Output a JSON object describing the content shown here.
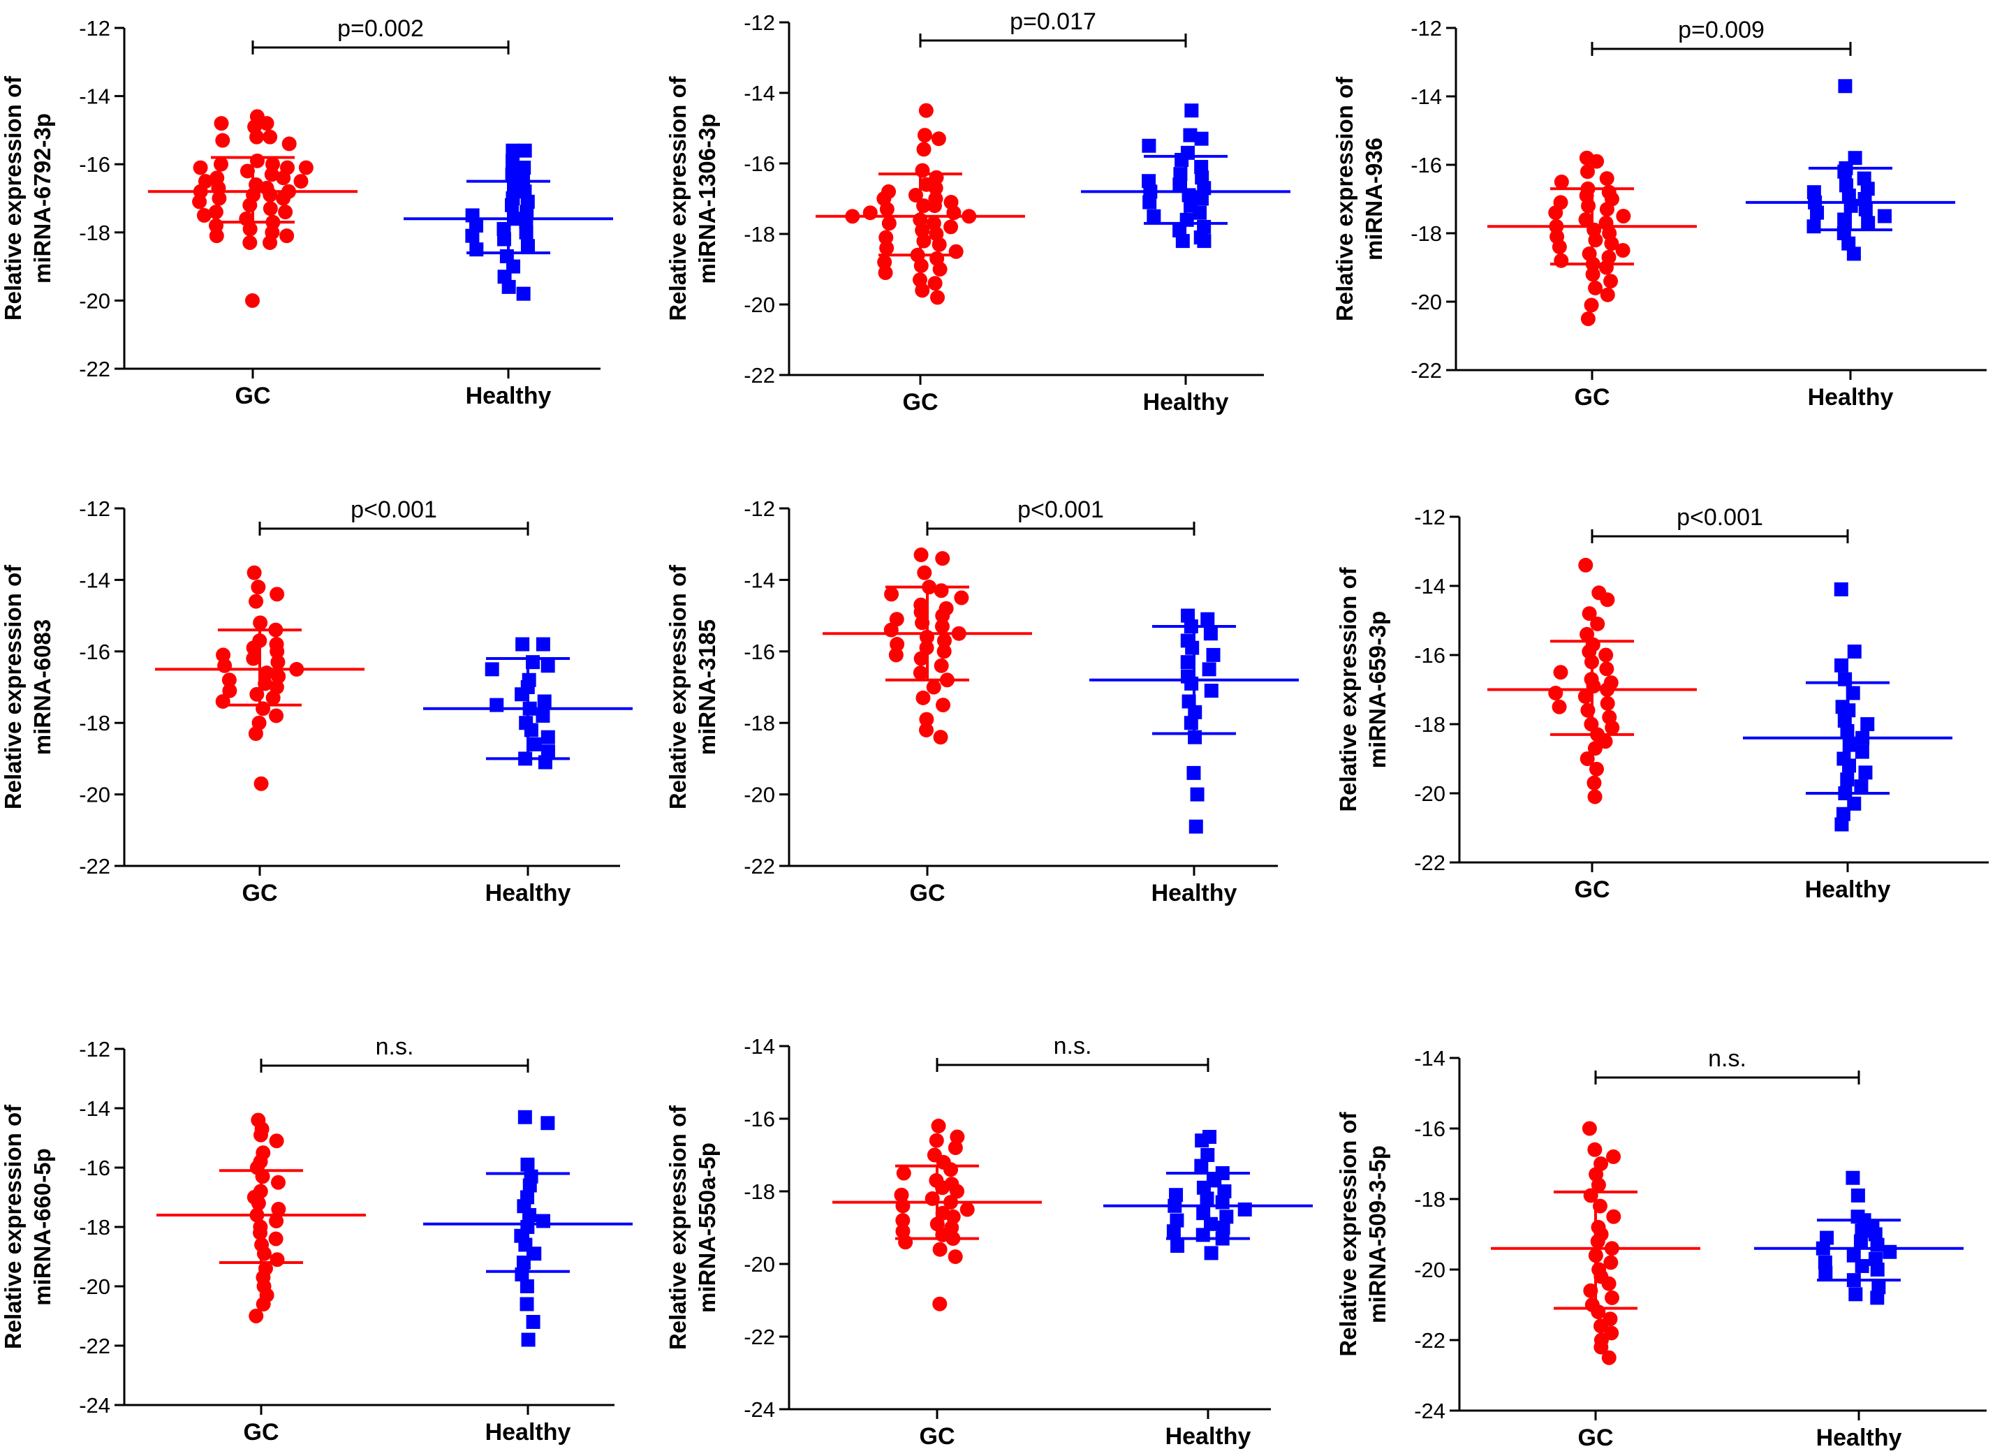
{
  "chart_data": [
    {
      "type": "scatter",
      "ylabel": [
        "Relative expression of",
        "miRNA-6792-3p"
      ],
      "categories": [
        "GC",
        "Healthy"
      ],
      "ylim": [
        -22,
        -12
      ],
      "yticks": [
        -12,
        -14,
        -16,
        -18,
        -20,
        -22
      ],
      "p_value": "p=0.002",
      "series": [
        {
          "name": "GC",
          "color": "#ff0000",
          "marker": "circle",
          "mean": -16.8,
          "sd_upper": -15.8,
          "sd_lower": -17.7,
          "values": [
            -14.6,
            -14.8,
            -14.8,
            -14.9,
            -15.2,
            -15.2,
            -15.3,
            -15.4,
            -15.9,
            -16.0,
            -16.0,
            -16.1,
            -16.1,
            -16.1,
            -16.2,
            -16.3,
            -16.4,
            -16.4,
            -16.5,
            -16.5,
            -16.6,
            -16.7,
            -16.7,
            -16.8,
            -16.8,
            -16.9,
            -16.9,
            -17.0,
            -17.0,
            -17.1,
            -17.2,
            -17.3,
            -17.4,
            -17.4,
            -17.5,
            -17.6,
            -17.7,
            -17.8,
            -17.9,
            -18.0,
            -18.1,
            -18.1,
            -18.3,
            -18.3,
            -20.0
          ]
        },
        {
          "name": "Healthy",
          "color": "#0000ff",
          "marker": "square",
          "mean": -17.6,
          "sd_upper": -16.5,
          "sd_lower": -18.6,
          "values": [
            -15.6,
            -15.6,
            -15.9,
            -16.1,
            -16.3,
            -16.5,
            -16.6,
            -16.8,
            -17.0,
            -17.1,
            -17.2,
            -17.4,
            -17.5,
            -17.6,
            -17.7,
            -17.8,
            -17.9,
            -18.0,
            -18.1,
            -18.2,
            -18.4,
            -18.5,
            -18.7,
            -19.0,
            -19.3,
            -19.6,
            -19.8
          ]
        }
      ]
    },
    {
      "type": "scatter",
      "ylabel": [
        "Relative expression of",
        "miRNA-1306-3p"
      ],
      "categories": [
        "GC",
        "Healthy"
      ],
      "ylim": [
        -22,
        -12
      ],
      "yticks": [
        -12,
        -14,
        -16,
        -18,
        -20,
        -22
      ],
      "p_value": "p=0.017",
      "series": [
        {
          "name": "GC",
          "color": "#ff0000",
          "marker": "circle",
          "mean": -17.5,
          "sd_upper": -16.3,
          "sd_lower": -18.6,
          "values": [
            -14.5,
            -15.2,
            -15.3,
            -15.6,
            -16.2,
            -16.4,
            -16.6,
            -16.7,
            -16.8,
            -16.9,
            -17.0,
            -17.0,
            -17.1,
            -17.2,
            -17.2,
            -17.3,
            -17.4,
            -17.4,
            -17.5,
            -17.5,
            -17.6,
            -17.7,
            -17.7,
            -17.8,
            -17.9,
            -18.0,
            -18.1,
            -18.2,
            -18.3,
            -18.4,
            -18.5,
            -18.6,
            -18.7,
            -18.8,
            -18.9,
            -19.0,
            -19.1,
            -19.3,
            -19.4,
            -19.6,
            -19.8
          ]
        },
        {
          "name": "Healthy",
          "color": "#0000ff",
          "marker": "square",
          "mean": -16.8,
          "sd_upper": -15.8,
          "sd_lower": -17.7,
          "values": [
            -14.5,
            -15.2,
            -15.3,
            -15.5,
            -15.7,
            -15.9,
            -16.1,
            -16.3,
            -16.4,
            -16.5,
            -16.6,
            -16.7,
            -16.8,
            -16.9,
            -17.0,
            -17.1,
            -17.2,
            -17.4,
            -17.5,
            -17.6,
            -17.8,
            -17.9,
            -18.1,
            -18.2,
            -18.2
          ]
        }
      ]
    },
    {
      "type": "scatter",
      "ylabel": [
        "Relative expression of",
        "miRNA-936"
      ],
      "categories": [
        "GC",
        "Healthy"
      ],
      "ylim": [
        -22,
        -12
      ],
      "yticks": [
        -12,
        -14,
        -16,
        -18,
        -20,
        -22
      ],
      "p_value": "p=0.009",
      "series": [
        {
          "name": "GC",
          "color": "#ff0000",
          "marker": "circle",
          "mean": -17.8,
          "sd_upper": -16.7,
          "sd_lower": -18.9,
          "values": [
            -15.8,
            -15.9,
            -16.2,
            -16.4,
            -16.5,
            -16.7,
            -16.8,
            -16.9,
            -17.0,
            -17.1,
            -17.2,
            -17.3,
            -17.4,
            -17.5,
            -17.6,
            -17.7,
            -17.8,
            -17.9,
            -18.0,
            -18.1,
            -18.2,
            -18.3,
            -18.4,
            -18.5,
            -18.6,
            -18.7,
            -18.8,
            -18.9,
            -19.0,
            -19.2,
            -19.4,
            -19.6,
            -19.8,
            -20.1,
            -20.5
          ]
        },
        {
          "name": "Healthy",
          "color": "#0000ff",
          "marker": "square",
          "mean": -17.1,
          "sd_upper": -16.1,
          "sd_lower": -17.9,
          "values": [
            -13.7,
            -15.8,
            -16.1,
            -16.2,
            -16.4,
            -16.6,
            -16.7,
            -16.8,
            -16.9,
            -17.0,
            -17.1,
            -17.2,
            -17.3,
            -17.4,
            -17.5,
            -17.6,
            -17.7,
            -17.8,
            -18.0,
            -18.3,
            -18.6
          ]
        }
      ]
    },
    {
      "type": "scatter",
      "ylabel": [
        "Relative expression of",
        "miRNA-6083"
      ],
      "categories": [
        "GC",
        "Healthy"
      ],
      "ylim": [
        -22,
        -12
      ],
      "yticks": [
        -12,
        -14,
        -16,
        -18,
        -20,
        -22
      ],
      "p_value": "p<0.001",
      "series": [
        {
          "name": "GC",
          "color": "#ff0000",
          "marker": "circle",
          "mean": -16.5,
          "sd_upper": -15.4,
          "sd_lower": -17.5,
          "values": [
            -13.8,
            -14.2,
            -14.4,
            -14.6,
            -15.2,
            -15.4,
            -15.7,
            -15.8,
            -15.9,
            -16.0,
            -16.1,
            -16.2,
            -16.3,
            -16.4,
            -16.5,
            -16.6,
            -16.7,
            -16.8,
            -16.9,
            -17.0,
            -17.1,
            -17.2,
            -17.3,
            -17.4,
            -17.6,
            -17.8,
            -18.0,
            -18.3,
            -19.7
          ]
        },
        {
          "name": "Healthy",
          "color": "#0000ff",
          "marker": "square",
          "mean": -17.6,
          "sd_upper": -16.2,
          "sd_lower": -19.0,
          "values": [
            -15.8,
            -15.8,
            -16.3,
            -16.4,
            -16.5,
            -16.8,
            -17.0,
            -17.2,
            -17.4,
            -17.5,
            -17.6,
            -17.8,
            -18.0,
            -18.2,
            -18.4,
            -18.6,
            -18.8,
            -19.0,
            -19.1
          ]
        }
      ]
    },
    {
      "type": "scatter",
      "ylabel": [
        "Relative expression of",
        "miRNA-3185"
      ],
      "categories": [
        "GC",
        "Healthy"
      ],
      "ylim": [
        -22,
        -12
      ],
      "yticks": [
        -12,
        -14,
        -16,
        -18,
        -20,
        -22
      ],
      "p_value": "p<0.001",
      "series": [
        {
          "name": "GC",
          "color": "#ff0000",
          "marker": "circle",
          "mean": -15.5,
          "sd_upper": -14.2,
          "sd_lower": -16.8,
          "values": [
            -13.3,
            -13.4,
            -13.8,
            -14.2,
            -14.3,
            -14.4,
            -14.5,
            -14.7,
            -14.8,
            -14.9,
            -15.0,
            -15.1,
            -15.2,
            -15.3,
            -15.4,
            -15.5,
            -15.6,
            -15.7,
            -15.8,
            -15.9,
            -16.0,
            -16.1,
            -16.2,
            -16.4,
            -16.6,
            -16.8,
            -17.0,
            -17.3,
            -17.5,
            -17.9,
            -18.2,
            -18.4
          ]
        },
        {
          "name": "Healthy",
          "color": "#0000ff",
          "marker": "square",
          "mean": -16.8,
          "sd_upper": -15.3,
          "sd_lower": -18.3,
          "values": [
            -15.0,
            -15.1,
            -15.3,
            -15.5,
            -15.7,
            -15.9,
            -16.1,
            -16.3,
            -16.5,
            -16.7,
            -16.9,
            -17.1,
            -17.4,
            -17.7,
            -18.0,
            -18.4,
            -19.4,
            -20.0,
            -20.9
          ]
        }
      ]
    },
    {
      "type": "scatter",
      "ylabel": [
        "Relative expression of",
        "miRNA-659-3p"
      ],
      "categories": [
        "GC",
        "Healthy"
      ],
      "ylim": [
        -22,
        -12
      ],
      "yticks": [
        -12,
        -14,
        -16,
        -18,
        -20,
        -22
      ],
      "p_value": "p<0.001",
      "series": [
        {
          "name": "GC",
          "color": "#ff0000",
          "marker": "circle",
          "mean": -17.0,
          "sd_upper": -15.6,
          "sd_lower": -18.3,
          "values": [
            -13.4,
            -14.2,
            -14.4,
            -14.8,
            -15.1,
            -15.4,
            -15.7,
            -15.9,
            -16.0,
            -16.2,
            -16.4,
            -16.5,
            -16.7,
            -16.8,
            -16.9,
            -17.0,
            -17.1,
            -17.2,
            -17.4,
            -17.5,
            -17.6,
            -17.8,
            -18.0,
            -18.1,
            -18.3,
            -18.5,
            -18.7,
            -19.0,
            -19.3,
            -19.7,
            -20.1
          ]
        },
        {
          "name": "Healthy",
          "color": "#0000ff",
          "marker": "square",
          "mean": -18.4,
          "sd_upper": -16.8,
          "sd_lower": -20.0,
          "values": [
            -14.1,
            -15.9,
            -16.3,
            -16.7,
            -17.1,
            -17.5,
            -17.6,
            -17.9,
            -18.0,
            -18.2,
            -18.4,
            -18.6,
            -18.8,
            -19.0,
            -19.2,
            -19.4,
            -19.6,
            -19.8,
            -20.0,
            -20.3,
            -20.6,
            -20.9
          ]
        }
      ]
    },
    {
      "type": "scatter",
      "ylabel": [
        "Relative expression of",
        "miRNA-660-5p"
      ],
      "categories": [
        "GC",
        "Healthy"
      ],
      "ylim": [
        -24,
        -12
      ],
      "yticks": [
        -12,
        -14,
        -16,
        -18,
        -20,
        -22,
        -24
      ],
      "p_value": "n.s.",
      "series": [
        {
          "name": "GC",
          "color": "#ff0000",
          "marker": "circle",
          "mean": -17.6,
          "sd_upper": -16.1,
          "sd_lower": -19.2,
          "values": [
            -14.4,
            -14.7,
            -14.9,
            -15.1,
            -15.5,
            -15.8,
            -16.0,
            -16.3,
            -16.5,
            -16.8,
            -17.0,
            -17.2,
            -17.4,
            -17.6,
            -17.8,
            -18.0,
            -18.2,
            -18.4,
            -18.6,
            -18.9,
            -19.1,
            -19.4,
            -19.7,
            -20.0,
            -20.3,
            -20.6,
            -21.0
          ]
        },
        {
          "name": "Healthy",
          "color": "#0000ff",
          "marker": "square",
          "mean": -17.9,
          "sd_upper": -16.2,
          "sd_lower": -19.5,
          "values": [
            -14.3,
            -14.5,
            -15.9,
            -16.3,
            -16.6,
            -17.0,
            -17.3,
            -17.6,
            -17.8,
            -18.0,
            -18.3,
            -18.6,
            -18.9,
            -19.2,
            -19.6,
            -20.0,
            -20.6,
            -21.2,
            -21.8
          ]
        }
      ]
    },
    {
      "type": "scatter",
      "ylabel": [
        "Relative expression of",
        "miRNA-550a-5p"
      ],
      "categories": [
        "GC",
        "Healthy"
      ],
      "ylim": [
        -24,
        -14
      ],
      "yticks": [
        -14,
        -16,
        -18,
        -20,
        -22,
        -24
      ],
      "p_value": "n.s.",
      "series": [
        {
          "name": "GC",
          "color": "#ff0000",
          "marker": "circle",
          "mean": -18.3,
          "sd_upper": -17.3,
          "sd_lower": -19.3,
          "values": [
            -16.2,
            -16.5,
            -16.6,
            -16.8,
            -17.0,
            -17.2,
            -17.4,
            -17.5,
            -17.7,
            -17.8,
            -17.9,
            -18.0,
            -18.1,
            -18.2,
            -18.3,
            -18.4,
            -18.5,
            -18.6,
            -18.7,
            -18.8,
            -18.9,
            -19.0,
            -19.1,
            -19.2,
            -19.3,
            -19.4,
            -19.6,
            -19.8,
            -21.1
          ]
        },
        {
          "name": "Healthy",
          "color": "#0000ff",
          "marker": "square",
          "mean": -18.4,
          "sd_upper": -17.5,
          "sd_lower": -19.3,
          "values": [
            -16.5,
            -16.6,
            -17.0,
            -17.3,
            -17.5,
            -17.7,
            -17.9,
            -18.0,
            -18.1,
            -18.2,
            -18.3,
            -18.4,
            -18.5,
            -18.6,
            -18.7,
            -18.8,
            -18.9,
            -19.0,
            -19.1,
            -19.2,
            -19.3,
            -19.5,
            -19.7
          ]
        }
      ]
    },
    {
      "type": "scatter",
      "ylabel": [
        "Relative expression of",
        "miRNA-509-3-5p"
      ],
      "categories": [
        "GC",
        "Healthy"
      ],
      "ylim": [
        -24,
        -14
      ],
      "yticks": [
        -14,
        -16,
        -18,
        -20,
        -22,
        -24
      ],
      "p_value": "n.s.",
      "series": [
        {
          "name": "GC",
          "color": "#ff0000",
          "marker": "circle",
          "mean": -19.4,
          "sd_upper": -17.8,
          "sd_lower": -21.1,
          "values": [
            -16.0,
            -16.6,
            -16.8,
            -17.0,
            -17.3,
            -17.6,
            -17.9,
            -18.2,
            -18.5,
            -18.8,
            -19.0,
            -19.2,
            -19.4,
            -19.6,
            -19.8,
            -20.0,
            -20.2,
            -20.4,
            -20.6,
            -20.8,
            -21.0,
            -21.2,
            -21.4,
            -21.6,
            -21.8,
            -22.0,
            -22.2,
            -22.5
          ]
        },
        {
          "name": "Healthy",
          "color": "#0000ff",
          "marker": "square",
          "mean": -19.4,
          "sd_upper": -18.6,
          "sd_lower": -20.3,
          "values": [
            -17.4,
            -17.9,
            -18.5,
            -18.6,
            -18.8,
            -18.9,
            -19.0,
            -19.1,
            -19.2,
            -19.3,
            -19.4,
            -19.5,
            -19.6,
            -19.7,
            -19.8,
            -19.9,
            -20.0,
            -20.1,
            -20.3,
            -20.5,
            -20.7,
            -20.8
          ]
        }
      ]
    }
  ]
}
